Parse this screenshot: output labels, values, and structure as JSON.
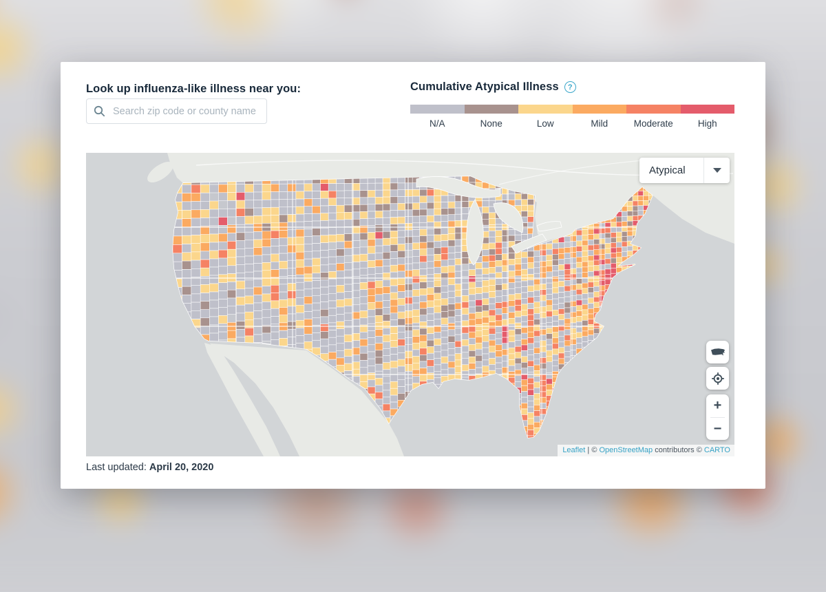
{
  "card": {
    "lookup_heading": "Look up influenza-like illness near you:",
    "search": {
      "placeholder": "Search zip code or county name"
    },
    "legend": {
      "title": "Cumulative Atypical Illness",
      "help_symbol": "?",
      "levels": [
        {
          "label": "N/A",
          "color": "#bfc0ca"
        },
        {
          "label": "None",
          "color": "#a8928e"
        },
        {
          "label": "Low",
          "color": "#fbd68c"
        },
        {
          "label": "Mild",
          "color": "#fbaa61"
        },
        {
          "label": "Moderate",
          "color": "#f58264"
        },
        {
          "label": "High",
          "color": "#e45c6b"
        }
      ]
    },
    "map": {
      "mode_dropdown": {
        "value": "Atypical"
      },
      "zoom_in": "+",
      "zoom_out": "−",
      "attribution": {
        "leaflet": "Leaflet",
        "sep": " | © ",
        "osm": "OpenStreetMap",
        "mid": " contributors © ",
        "carto": "CARTO"
      },
      "base_colors": {
        "ocean": "#d2d5d7",
        "other_land": "#e8eae6",
        "county_base": "#c6c8ce",
        "border": "#ffffff"
      }
    },
    "last_updated": {
      "label": "Last updated:",
      "date": "April 20, 2020"
    }
  }
}
